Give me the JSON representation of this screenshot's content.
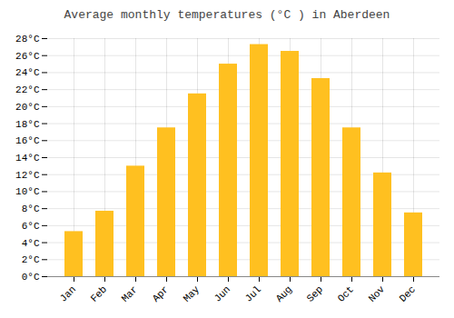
{
  "chart_data": {
    "type": "bar",
    "title": "Average monthly temperatures (°C ) in Aberdeen",
    "categories": [
      "Jan",
      "Feb",
      "Mar",
      "Apr",
      "May",
      "Jun",
      "Jul",
      "Aug",
      "Sep",
      "Oct",
      "Nov",
      "Dec"
    ],
    "values": [
      5.3,
      7.7,
      13.0,
      17.5,
      21.5,
      25.0,
      27.3,
      26.5,
      23.3,
      17.5,
      12.2,
      7.5
    ],
    "color": "#FFC020",
    "ylim": [
      0,
      28
    ],
    "yticks": [
      {
        "value": 0,
        "label": "0°C"
      },
      {
        "value": 2,
        "label": "2°C"
      },
      {
        "value": 4,
        "label": "4°C"
      },
      {
        "value": 6,
        "label": "6°C"
      },
      {
        "value": 8,
        "label": "8°C"
      },
      {
        "value": 10,
        "label": "10°C"
      },
      {
        "value": 12,
        "label": "12°C"
      },
      {
        "value": 14,
        "label": "14°C"
      },
      {
        "value": 16,
        "label": "16°C"
      },
      {
        "value": 18,
        "label": "18°C"
      },
      {
        "value": 20,
        "label": "20°C"
      },
      {
        "value": 22,
        "label": "22°C"
      },
      {
        "value": 24,
        "label": "24°C"
      },
      {
        "value": 26,
        "label": "26°C"
      },
      {
        "value": 28,
        "label": "28°C"
      }
    ],
    "grid": true
  }
}
